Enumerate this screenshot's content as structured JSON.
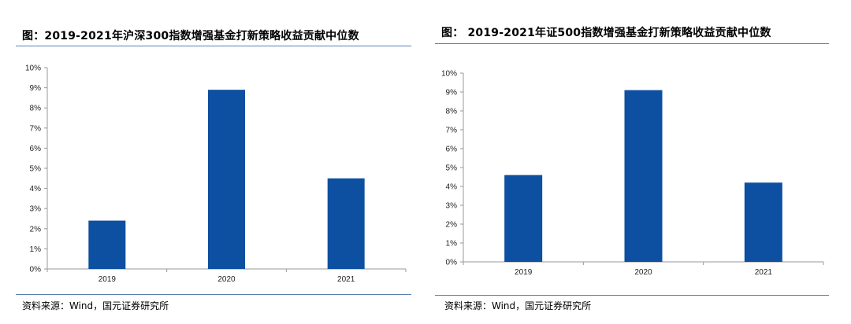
{
  "panels": [
    {
      "title": "图：2019-2021年沪深300指数增强基金打新策略收益贡献中位数",
      "source": "资料来源：Wind，国元证券研究所"
    },
    {
      "title": "图：  2019-2021年证500指数增强基金打新策略收益贡献中位数",
      "source": "资料来源：Wind，国元证券研究所"
    }
  ],
  "colors": {
    "bar": "#0d4fa1",
    "rule": "#5b7fb3",
    "axis": "#999999"
  },
  "chart_data": [
    {
      "type": "bar",
      "categories": [
        "2019",
        "2020",
        "2021"
      ],
      "values": [
        2.4,
        8.9,
        4.5
      ],
      "yticks": [
        "0%",
        "1%",
        "2%",
        "3%",
        "4%",
        "5%",
        "6%",
        "7%",
        "8%",
        "9%",
        "10%"
      ],
      "ylim": [
        0,
        10
      ],
      "grid": false,
      "legend": "none"
    },
    {
      "type": "bar",
      "categories": [
        "2019",
        "2020",
        "2021"
      ],
      "values": [
        4.6,
        9.1,
        4.2
      ],
      "yticks": [
        "0%",
        "1%",
        "2%",
        "3%",
        "4%",
        "5%",
        "6%",
        "7%",
        "8%",
        "9%",
        "10%"
      ],
      "ylim": [
        0,
        10
      ],
      "grid": false,
      "legend": "none"
    }
  ]
}
